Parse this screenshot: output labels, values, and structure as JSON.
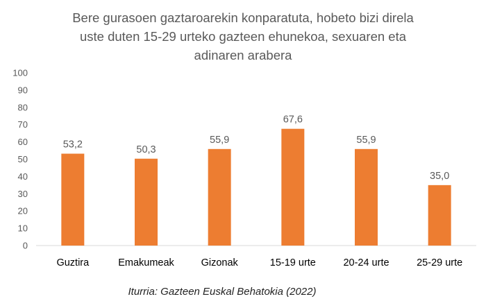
{
  "title_lines": [
    "Bere gurasoen gaztaroarekin konparatuta, hobeto bizi direla",
    "uste duten 15-29 urteko gazteen ehunekoa, sexuaren eta",
    "adinaren arabera"
  ],
  "source": "Iturria: Gazteen Euskal Behatokia (2022)",
  "colors": {
    "bar": "#ED7D31",
    "text": "#595959",
    "axis": "#D9D9D9"
  },
  "chart_data": {
    "type": "bar",
    "title": "Bere gurasoen gaztaroarekin konparatuta, hobeto bizi direla uste duten 15-29 urteko gazteen ehunekoa, sexuaren eta adinaren arabera",
    "categories": [
      "Guztira",
      "Emakumeak",
      "Gizonak",
      "15-19 urte",
      "20-24 urte",
      "25-29 urte"
    ],
    "values": [
      53.2,
      50.3,
      55.9,
      67.6,
      55.9,
      35.0
    ],
    "value_labels": [
      "53,2",
      "50,3",
      "55,9",
      "67,6",
      "55,9",
      "35,0"
    ],
    "ylim": [
      0,
      100
    ],
    "yticks": [
      0,
      10,
      20,
      30,
      40,
      50,
      60,
      70,
      80,
      90,
      100
    ],
    "xlabel": "",
    "ylabel": "",
    "grid": false,
    "legend": "none"
  }
}
